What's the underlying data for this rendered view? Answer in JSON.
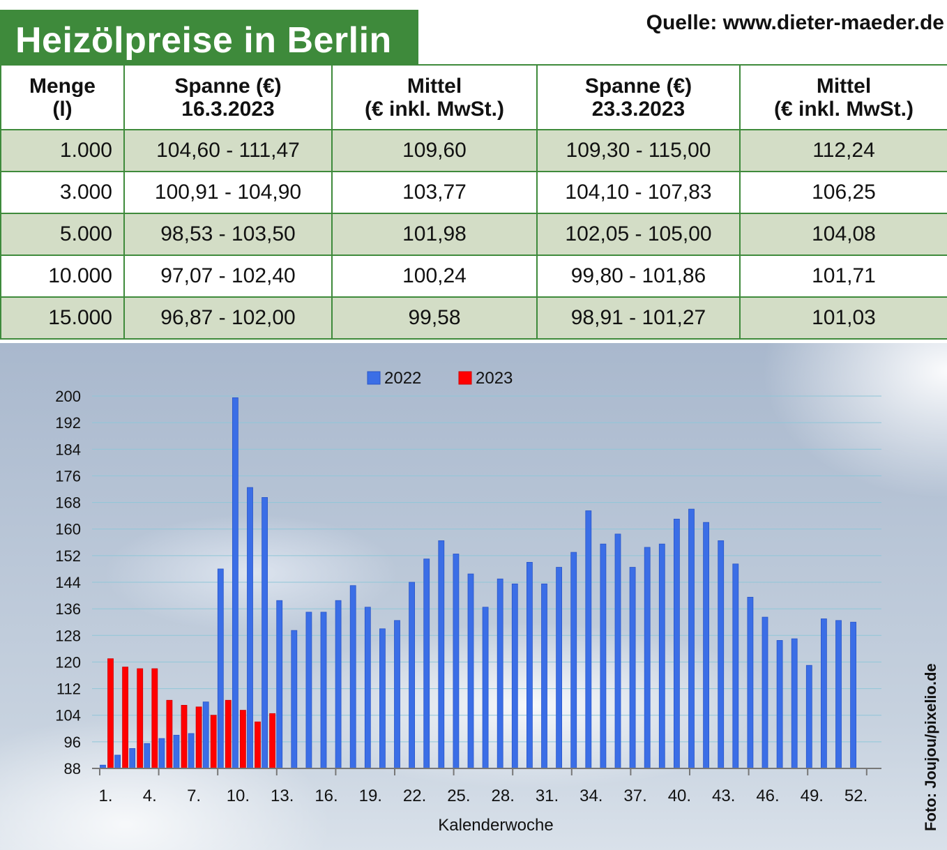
{
  "header": {
    "title": "Heizölpreise in Berlin",
    "source": "Quelle: www.dieter-maeder.de"
  },
  "table": {
    "headers": [
      [
        "Menge",
        "(l)"
      ],
      [
        "Spanne (€)",
        "16.3.2023"
      ],
      [
        "Mittel",
        "(€ inkl. MwSt.)"
      ],
      [
        "Spanne (€)",
        "23.3.2023"
      ],
      [
        "Mittel",
        "(€ inkl. MwSt.)"
      ]
    ],
    "rows": [
      [
        "1.000",
        "104,60 - 111,47",
        "109,60",
        "109,30 - 115,00",
        "112,24"
      ],
      [
        "3.000",
        "100,91 - 104,90",
        "103,77",
        "104,10 - 107,83",
        "106,25"
      ],
      [
        "5.000",
        "98,53 - 103,50",
        "101,98",
        "102,05 - 105,00",
        "104,08"
      ],
      [
        "10.000",
        "97,07 - 102,40",
        "100,24",
        "99,80 - 101,86",
        "101,71"
      ],
      [
        "15.000",
        "96,87 - 102,00",
        "99,58",
        "98,91 - 101,27",
        "101,03"
      ]
    ]
  },
  "chart_data": {
    "type": "bar",
    "xlabel": "Kalenderwoche",
    "ylabel": "",
    "ylim": [
      88,
      200
    ],
    "yticks": [
      88,
      96,
      104,
      112,
      120,
      128,
      136,
      144,
      152,
      160,
      168,
      176,
      184,
      192,
      200
    ],
    "x": [
      1,
      2,
      3,
      4,
      5,
      6,
      7,
      8,
      9,
      10,
      11,
      12,
      13,
      14,
      15,
      16,
      17,
      18,
      19,
      20,
      21,
      22,
      23,
      24,
      25,
      26,
      27,
      28,
      29,
      30,
      31,
      32,
      33,
      34,
      35,
      36,
      37,
      38,
      39,
      40,
      41,
      42,
      43,
      44,
      45,
      46,
      47,
      48,
      49,
      50,
      51,
      52
    ],
    "xtick_labels": [
      "1.",
      "4.",
      "7.",
      "10.",
      "13.",
      "16.",
      "19.",
      "22.",
      "25.",
      "28.",
      "31.",
      "34.",
      "37.",
      "40.",
      "43.",
      "46.",
      "49.",
      "52."
    ],
    "legend_position": "top-center",
    "grid": true,
    "series": [
      {
        "name": "2022",
        "color": "#3b6ee6",
        "values": [
          89,
          92,
          94,
          95.5,
          97,
          98,
          98.5,
          108,
          148,
          199.5,
          172.5,
          169.5,
          138.5,
          129.5,
          135,
          135,
          138.5,
          143,
          136.5,
          130,
          132.5,
          144,
          151,
          156.5,
          152.5,
          146.5,
          136.5,
          145,
          143.5,
          150,
          143.5,
          148.5,
          153,
          165.5,
          155.5,
          158.5,
          148.5,
          154.5,
          155.5,
          163,
          166,
          162,
          156.5,
          149.5,
          139.5,
          133.5,
          126.5,
          127,
          119,
          133,
          132.5,
          132
        ]
      },
      {
        "name": "2023",
        "color": "#ff0000",
        "values": [
          121,
          118.5,
          118,
          118,
          108.5,
          107,
          106.5,
          104,
          108.5,
          105.5,
          102,
          104.5,
          null,
          null,
          null,
          null,
          null,
          null,
          null,
          null,
          null,
          null,
          null,
          null,
          null,
          null,
          null,
          null,
          null,
          null,
          null,
          null,
          null,
          null,
          null,
          null,
          null,
          null,
          null,
          null,
          null,
          null,
          null,
          null,
          null,
          null,
          null,
          null,
          null,
          null,
          null,
          null
        ]
      }
    ]
  },
  "credit": "Foto: Joujou/pixelio.de"
}
